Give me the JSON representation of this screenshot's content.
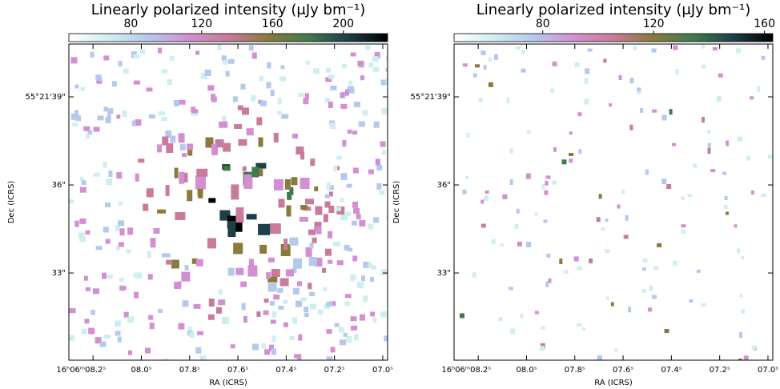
{
  "chart_data": [
    {
      "type": "image",
      "title": "Linearly polarized intensity (μJy bm⁻¹)",
      "colorbar": {
        "clim": [
          45,
          225
        ],
        "ticks": [
          80,
          120,
          160,
          200
        ],
        "colormap": [
          "#ffffff",
          "#cfeef0",
          "#b4c9ee",
          "#d38fd2",
          "#c87b9a",
          "#8a7a3c",
          "#3f7a4e",
          "#1f3f48",
          "#000000"
        ]
      },
      "xlabel": "RA (ICRS)",
      "ylabel": "Dec (ICRS)",
      "xlim": [
        8.3,
        6.98
      ],
      "xticks": [
        {
          "value": 8.2,
          "label": "16ʰ06ᵐ08.2ˢ"
        },
        {
          "value": 8.0,
          "label": "08.0ˢ"
        },
        {
          "value": 7.8,
          "label": "07.8ˢ"
        },
        {
          "value": 7.6,
          "label": "07.6ˢ"
        },
        {
          "value": 7.4,
          "label": "07.4ˢ"
        },
        {
          "value": 7.2,
          "label": "07.2ˢ"
        },
        {
          "value": 7.0,
          "label": "07.0ˢ"
        }
      ],
      "ylim": [
        30.03,
        40.8
      ],
      "yticks": [
        {
          "value": 39,
          "label": "55°21'39\""
        },
        {
          "value": 36,
          "label": "36\""
        },
        {
          "value": 33,
          "label": "33\""
        }
      ]
    },
    {
      "type": "image",
      "title": "Linearly polarized intensity (μJy bm⁻¹)",
      "colorbar": {
        "clim": [
          48,
          163
        ],
        "ticks": [
          80,
          120,
          160
        ],
        "colormap": [
          "#ffffff",
          "#cfeef0",
          "#b4c9ee",
          "#d38fd2",
          "#c87b9a",
          "#8a7a3c",
          "#3f7a4e",
          "#1f3f48",
          "#000000"
        ]
      },
      "xlabel": "RA (ICRS)",
      "ylabel": "Dec (ICRS)",
      "xlim": [
        8.3,
        6.98
      ],
      "xticks": [
        {
          "value": 8.2,
          "label": "16ʰ06ᵐ08.2ˢ"
        },
        {
          "value": 8.0,
          "label": "08.0ˢ"
        },
        {
          "value": 7.8,
          "label": "07.8ˢ"
        },
        {
          "value": 7.6,
          "label": "07.6ˢ"
        },
        {
          "value": 7.4,
          "label": "07.4ˢ"
        },
        {
          "value": 7.2,
          "label": "07.2ˢ"
        },
        {
          "value": 7.0,
          "label": "07.0ˢ"
        }
      ],
      "ylim": [
        30.03,
        40.8
      ],
      "yticks": [
        {
          "value": 39,
          "label": "55°21'39\""
        },
        {
          "value": 36,
          "label": "36\""
        },
        {
          "value": 33,
          "label": "33\""
        }
      ]
    }
  ]
}
